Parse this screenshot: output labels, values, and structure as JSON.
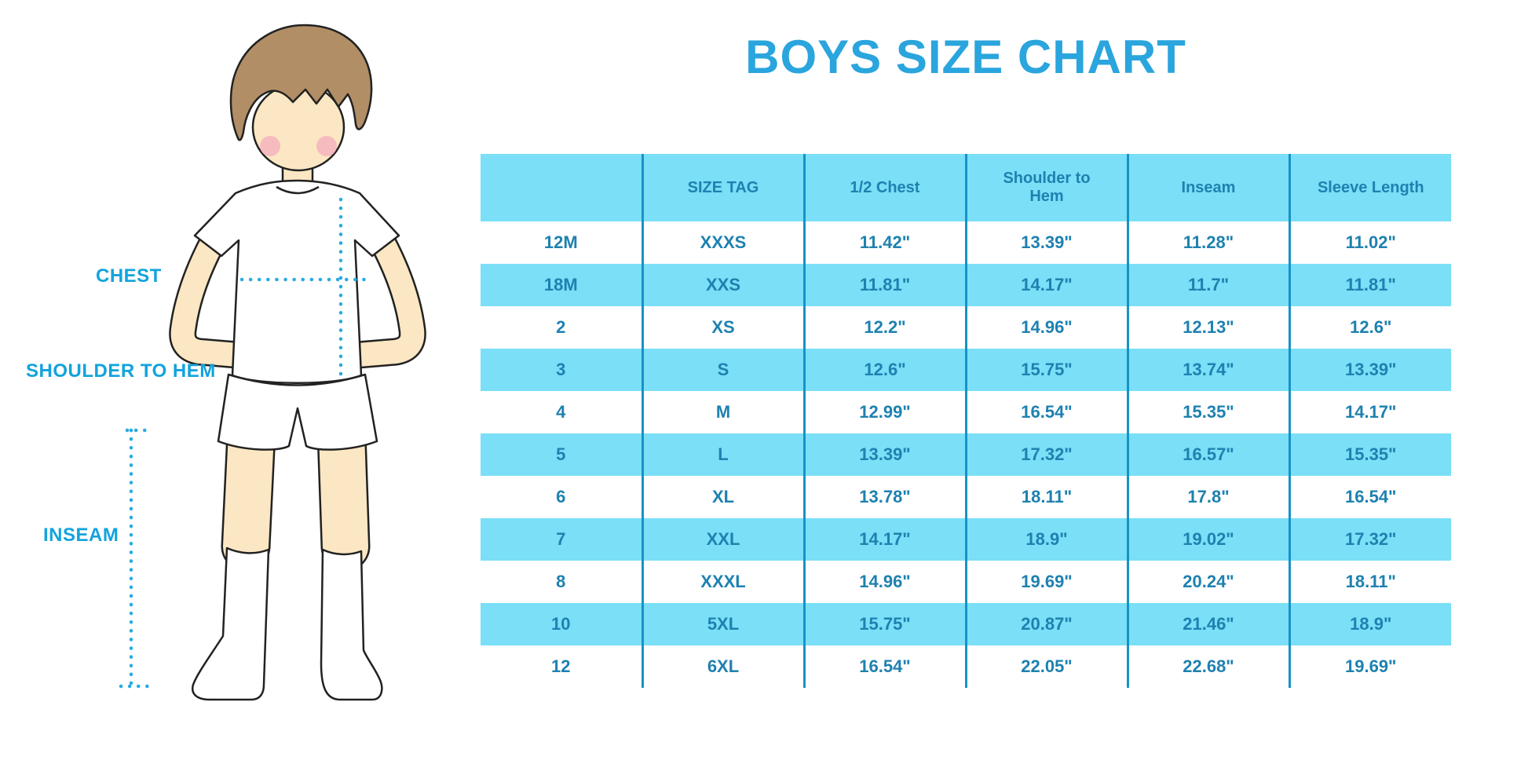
{
  "title": "BOYS SIZE CHART",
  "figure": {
    "labels": {
      "chest": "CHEST",
      "shoulder_to_hem": "SHOULDER TO HEM",
      "inseam": "INSEAM"
    }
  },
  "colors": {
    "title_blue": "#2AA5DD",
    "figure_label_blue": "#12A3DC",
    "table_text_blue": "#1E81B0",
    "row_fill_blue": "#7ADFF7",
    "column_separator_blue": "#1693C6",
    "dotted_line_blue": "#29ABE2"
  },
  "chart_data": {
    "type": "table",
    "title": "BOYS SIZE CHART",
    "columns": [
      "",
      "SIZE TAG",
      "1/2 Chest",
      "Shoulder to Hem",
      "Inseam",
      "Sleeve Length"
    ],
    "rows": [
      [
        "12M",
        "XXXS",
        "11.42\"",
        "13.39\"",
        "11.28\"",
        "11.02\""
      ],
      [
        "18M",
        "XXS",
        "11.81\"",
        "14.17\"",
        "11.7\"",
        "11.81\""
      ],
      [
        "2",
        "XS",
        "12.2\"",
        "14.96\"",
        "12.13\"",
        "12.6\""
      ],
      [
        "3",
        "S",
        "12.6\"",
        "15.75\"",
        "13.74\"",
        "13.39\""
      ],
      [
        "4",
        "M",
        "12.99\"",
        "16.54\"",
        "15.35\"",
        "14.17\""
      ],
      [
        "5",
        "L",
        "13.39\"",
        "17.32\"",
        "16.57\"",
        "15.35\""
      ],
      [
        "6",
        "XL",
        "13.78\"",
        "18.11\"",
        "17.8\"",
        "16.54\""
      ],
      [
        "7",
        "XXL",
        "14.17\"",
        "18.9\"",
        "19.02\"",
        "17.32\""
      ],
      [
        "8",
        "XXXL",
        "14.96\"",
        "19.69\"",
        "20.24\"",
        "18.11\""
      ],
      [
        "10",
        "5XL",
        "15.75\"",
        "20.87\"",
        "21.46\"",
        "18.9\""
      ],
      [
        "12",
        "6XL",
        "16.54\"",
        "22.05\"",
        "22.68\"",
        "19.69\""
      ]
    ],
    "layout_hints": {
      "header_fill": "#7ADFF7",
      "alternating_rows": "white / #7ADFF7",
      "grid": "vertical separators only"
    }
  }
}
